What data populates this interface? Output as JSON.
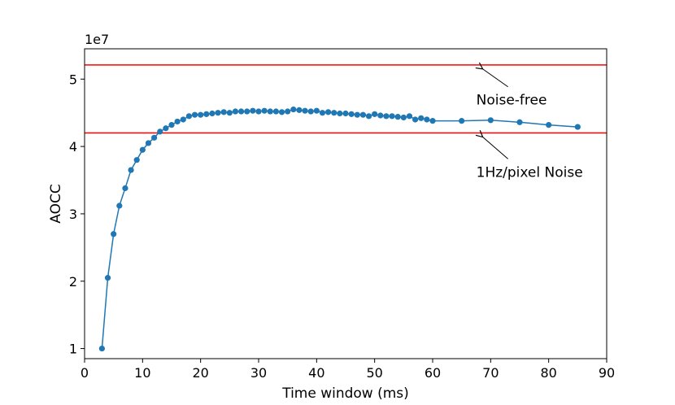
{
  "chart_data": {
    "type": "line",
    "title": "",
    "xlabel": "Time window (ms)",
    "ylabel": "AOCC",
    "y_scale_label": "1e7",
    "y_scale_factor": 10000000,
    "xlim": [
      0,
      90
    ],
    "ylim": [
      0.85,
      5.45
    ],
    "x_ticks": [
      0,
      10,
      20,
      30,
      40,
      50,
      60,
      70,
      80,
      90
    ],
    "y_ticks": [
      1,
      2,
      3,
      4,
      5
    ],
    "grid": false,
    "legend": "none",
    "series": [
      {
        "color": "#1f77b4",
        "marker": "circle",
        "x": [
          3,
          4,
          5,
          6,
          7,
          8,
          9,
          10,
          11,
          12,
          13,
          14,
          15,
          16,
          17,
          18,
          19,
          20,
          21,
          22,
          23,
          24,
          25,
          26,
          27,
          28,
          29,
          30,
          31,
          32,
          33,
          34,
          35,
          36,
          37,
          38,
          39,
          40,
          41,
          42,
          43,
          44,
          45,
          46,
          47,
          48,
          49,
          50,
          51,
          52,
          53,
          54,
          55,
          56,
          57,
          58,
          59,
          60,
          65,
          70,
          75,
          80,
          85
        ],
        "y": [
          1.0,
          2.05,
          2.7,
          3.12,
          3.38,
          3.65,
          3.8,
          3.95,
          4.05,
          4.13,
          4.22,
          4.27,
          4.32,
          4.37,
          4.4,
          4.45,
          4.47,
          4.47,
          4.48,
          4.49,
          4.5,
          4.51,
          4.5,
          4.52,
          4.52,
          4.52,
          4.53,
          4.52,
          4.53,
          4.52,
          4.52,
          4.51,
          4.52,
          4.55,
          4.54,
          4.53,
          4.52,
          4.53,
          4.5,
          4.51,
          4.5,
          4.49,
          4.49,
          4.48,
          4.47,
          4.47,
          4.45,
          4.48,
          4.46,
          4.45,
          4.45,
          4.44,
          4.43,
          4.45,
          4.4,
          4.42,
          4.4,
          4.38,
          4.38,
          4.39,
          4.36,
          4.32,
          4.29
        ]
      }
    ],
    "reference_lines": [
      {
        "y": 5.21,
        "color": "#ff0000",
        "annotation": "Noise-free",
        "arrow_x": 68.5,
        "text_x": 68.5,
        "text_y": 4.62
      },
      {
        "y": 4.2,
        "color": "#ff0000",
        "annotation": "1Hz/pixel Noise",
        "arrow_x": 68.5,
        "text_x": 68.5,
        "text_y": 3.55
      }
    ]
  }
}
